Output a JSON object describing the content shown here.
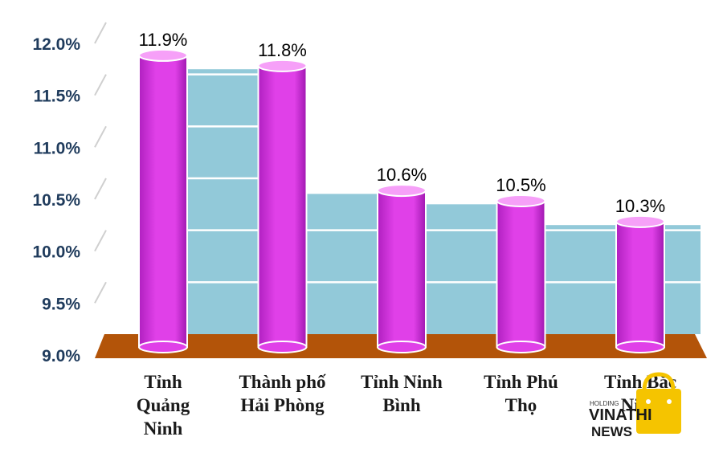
{
  "chart_data": {
    "type": "bar",
    "categories": [
      [
        "Tỉnh",
        "Quảng",
        "Ninh"
      ],
      [
        "Thành phố",
        "Hải Phòng"
      ],
      [
        "Tỉnh Ninh",
        "Bình"
      ],
      [
        "Tỉnh Phú",
        "Thọ"
      ],
      [
        "Tỉnh Bắc",
        "Ninh"
      ]
    ],
    "values": [
      11.9,
      11.8,
      10.6,
      10.5,
      10.3
    ],
    "value_labels": [
      "11.9%",
      "11.8%",
      "10.6%",
      "10.5%",
      "10.3%"
    ],
    "ylim": [
      9.0,
      12.0
    ],
    "yticks": [
      12.0,
      11.5,
      11.0,
      10.5,
      10.0,
      9.5,
      9.0
    ],
    "ytick_labels": [
      "12.0%",
      "11.5%",
      "11.0%",
      "10.5%",
      "10.0%",
      "9.5%",
      "9.0%"
    ],
    "grid": true,
    "colors": {
      "bar": "#e040e8",
      "bar_top": "#f6a0f8",
      "back_wall": "#92c9d9",
      "floor": "#b35409",
      "grid": "#ffffff",
      "tick_text": "#1f3b5c"
    }
  },
  "watermark": {
    "small": "HOLDING",
    "brand": "VINATHI",
    "sub": "NEWS",
    "icon": "shopping-bag-icon",
    "color": "#f5c400"
  }
}
